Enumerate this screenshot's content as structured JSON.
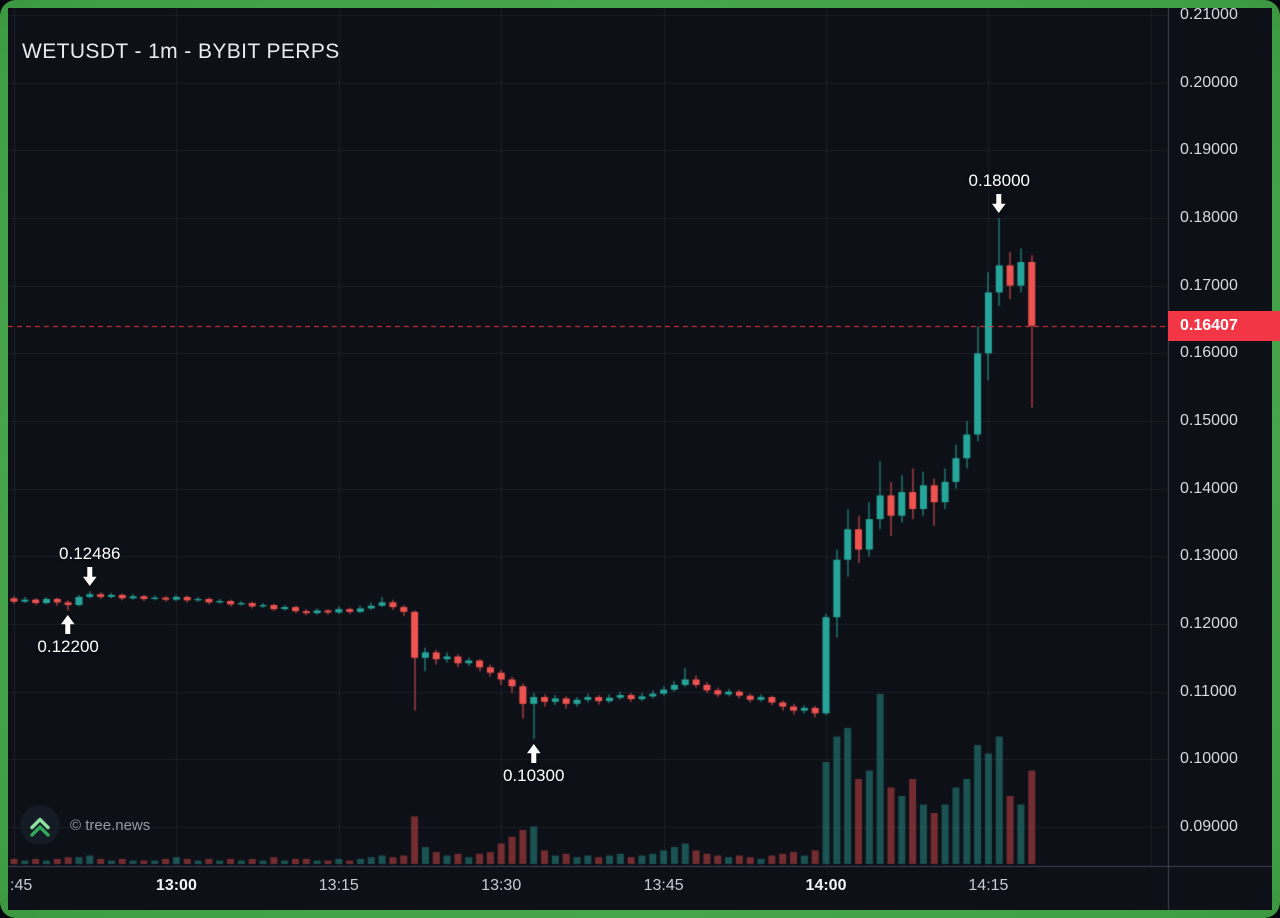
{
  "header": {
    "title": "WETUSDT - 1m - BYBIT PERPS"
  },
  "watermark": {
    "text": "© tree.news",
    "logo_icon": "double-chevron-up"
  },
  "chart_data": {
    "type": "candlestick",
    "symbol": "WETUSDT",
    "interval": "1m",
    "market": "BYBIT PERPS",
    "series_start_time": "12:45",
    "interval_minutes": 1,
    "visible_price_range": [
      0.0843,
      0.211
    ],
    "grid": true,
    "legend_position": "none",
    "price_axis": {
      "ticks": [
        "0.21000",
        "0.20000",
        "0.19000",
        "0.18000",
        "0.17000",
        "0.16000",
        "0.15000",
        "0.14000",
        "0.13000",
        "0.12000",
        "0.11000",
        "0.10000",
        "0.09000"
      ]
    },
    "time_axis": {
      "ticks": [
        {
          "label": ":45",
          "minute": 0,
          "major": false,
          "edge": true
        },
        {
          "label": "13:00",
          "minute": 15,
          "major": true
        },
        {
          "label": "13:15",
          "minute": 30,
          "major": false
        },
        {
          "label": "13:30",
          "minute": 45,
          "major": false
        },
        {
          "label": "13:45",
          "minute": 60,
          "major": false
        },
        {
          "label": "14:00",
          "minute": 75,
          "major": true
        },
        {
          "label": "14:15",
          "minute": 90,
          "major": false
        }
      ],
      "extra_gridline_minutes": [
        105
      ]
    },
    "last_price": {
      "value": 0.16407,
      "label": "0.16407"
    },
    "annotations": [
      {
        "label": "0.12486",
        "price": 0.12486,
        "candle_index": 7,
        "arrow": "down"
      },
      {
        "label": "0.12200",
        "price": 0.122,
        "candle_index": 5,
        "arrow": "up"
      },
      {
        "label": "0.10300",
        "price": 0.103,
        "candle_index": 48,
        "arrow": "up"
      },
      {
        "label": "0.18000",
        "price": 0.18,
        "candle_index": 91,
        "arrow": "down"
      }
    ],
    "colors": {
      "up": "#26a69a",
      "down": "#ef5350",
      "volume_up": "rgba(42,167,155,0.45)",
      "volume_down": "rgba(239,83,80,0.45)",
      "last_price_line": "#f23645",
      "background": "#0d1017",
      "grid": "rgba(255,255,255,0.06)",
      "axis_separator": "#3f4655",
      "frame_green": "#3f9e44"
    },
    "volume_unit": "relative",
    "candle_format": [
      "open",
      "high",
      "low",
      "close",
      "volume"
    ],
    "candles": [
      [
        0.1238,
        0.1241,
        0.123,
        0.1233,
        3
      ],
      [
        0.1233,
        0.124,
        0.1231,
        0.1236,
        2
      ],
      [
        0.1236,
        0.1238,
        0.1228,
        0.1231,
        3
      ],
      [
        0.1231,
        0.124,
        0.1229,
        0.1237,
        2
      ],
      [
        0.1237,
        0.1239,
        0.1227,
        0.1232,
        3
      ],
      [
        0.1232,
        0.1235,
        0.122,
        0.1228,
        4
      ],
      [
        0.1228,
        0.1243,
        0.1226,
        0.124,
        4
      ],
      [
        0.124,
        0.12486,
        0.1238,
        0.1244,
        5
      ],
      [
        0.1244,
        0.1247,
        0.1237,
        0.124,
        3
      ],
      [
        0.124,
        0.1246,
        0.1238,
        0.1243,
        2
      ],
      [
        0.1243,
        0.1245,
        0.1235,
        0.1238,
        3
      ],
      [
        0.1238,
        0.1244,
        0.1236,
        0.1241,
        2
      ],
      [
        0.1241,
        0.1243,
        0.1234,
        0.1237,
        2
      ],
      [
        0.1237,
        0.1242,
        0.1235,
        0.1239,
        2
      ],
      [
        0.1239,
        0.1241,
        0.1233,
        0.1236,
        3
      ],
      [
        0.1236,
        0.1243,
        0.1234,
        0.124,
        4
      ],
      [
        0.124,
        0.1242,
        0.1232,
        0.1235,
        3
      ],
      [
        0.1235,
        0.124,
        0.1233,
        0.1237,
        2
      ],
      [
        0.1237,
        0.1239,
        0.1229,
        0.1232,
        3
      ],
      [
        0.1232,
        0.1237,
        0.123,
        0.1234,
        2
      ],
      [
        0.1234,
        0.1236,
        0.1226,
        0.1229,
        3
      ],
      [
        0.1229,
        0.1234,
        0.1227,
        0.1231,
        2
      ],
      [
        0.1231,
        0.1233,
        0.1223,
        0.1226,
        3
      ],
      [
        0.1226,
        0.1231,
        0.1224,
        0.1228,
        2
      ],
      [
        0.1228,
        0.123,
        0.1219,
        0.1222,
        4
      ],
      [
        0.1222,
        0.1228,
        0.122,
        0.1225,
        2
      ],
      [
        0.1225,
        0.1227,
        0.1216,
        0.1219,
        3
      ],
      [
        0.1219,
        0.1222,
        0.1213,
        0.1216,
        3
      ],
      [
        0.1216,
        0.1223,
        0.1214,
        0.122,
        2
      ],
      [
        0.122,
        0.1222,
        0.1214,
        0.1217,
        2
      ],
      [
        0.1217,
        0.1226,
        0.1215,
        0.1222,
        3
      ],
      [
        0.1222,
        0.1224,
        0.1215,
        0.1218,
        2
      ],
      [
        0.1218,
        0.1227,
        0.1216,
        0.1223,
        3
      ],
      [
        0.1223,
        0.1232,
        0.1221,
        0.1227,
        4
      ],
      [
        0.1227,
        0.124,
        0.1225,
        0.1232,
        5
      ],
      [
        0.1232,
        0.1236,
        0.1221,
        0.1225,
        4
      ],
      [
        0.1225,
        0.1228,
        0.1212,
        0.1218,
        5
      ],
      [
        0.1218,
        0.122,
        0.1072,
        0.115,
        28
      ],
      [
        0.115,
        0.1165,
        0.113,
        0.1158,
        10
      ],
      [
        0.1158,
        0.1162,
        0.114,
        0.1148,
        7
      ],
      [
        0.1148,
        0.1158,
        0.1143,
        0.1152,
        5
      ],
      [
        0.1152,
        0.1155,
        0.1136,
        0.1142,
        6
      ],
      [
        0.1142,
        0.115,
        0.1138,
        0.1146,
        4
      ],
      [
        0.1146,
        0.1148,
        0.113,
        0.1136,
        6
      ],
      [
        0.1136,
        0.114,
        0.1122,
        0.1128,
        7
      ],
      [
        0.1128,
        0.1132,
        0.111,
        0.1118,
        12
      ],
      [
        0.1118,
        0.1122,
        0.1098,
        0.1108,
        16
      ],
      [
        0.1108,
        0.1112,
        0.106,
        0.1082,
        20
      ],
      [
        0.1082,
        0.1098,
        0.103,
        0.1092,
        22
      ],
      [
        0.1092,
        0.1096,
        0.1078,
        0.1085,
        8
      ],
      [
        0.1085,
        0.1095,
        0.108,
        0.109,
        5
      ],
      [
        0.109,
        0.1093,
        0.1075,
        0.1082,
        6
      ],
      [
        0.1082,
        0.1092,
        0.1078,
        0.1088,
        4
      ],
      [
        0.1088,
        0.1097,
        0.1084,
        0.1092,
        5
      ],
      [
        0.1092,
        0.1095,
        0.1081,
        0.1086,
        4
      ],
      [
        0.1086,
        0.1096,
        0.1083,
        0.1091,
        5
      ],
      [
        0.1091,
        0.11,
        0.1088,
        0.1095,
        6
      ],
      [
        0.1095,
        0.1098,
        0.1085,
        0.1089,
        4
      ],
      [
        0.1089,
        0.1098,
        0.1086,
        0.1093,
        5
      ],
      [
        0.1093,
        0.1102,
        0.109,
        0.1097,
        6
      ],
      [
        0.1097,
        0.1108,
        0.1094,
        0.1103,
        8
      ],
      [
        0.1103,
        0.1116,
        0.11,
        0.111,
        10
      ],
      [
        0.111,
        0.1135,
        0.1107,
        0.1118,
        12
      ],
      [
        0.1118,
        0.1124,
        0.1106,
        0.111,
        8
      ],
      [
        0.111,
        0.1114,
        0.1098,
        0.1102,
        6
      ],
      [
        0.1102,
        0.1106,
        0.1092,
        0.1096,
        5
      ],
      [
        0.1096,
        0.1104,
        0.1093,
        0.11,
        4
      ],
      [
        0.11,
        0.1103,
        0.109,
        0.1094,
        5
      ],
      [
        0.1094,
        0.1097,
        0.1084,
        0.1088,
        4
      ],
      [
        0.1088,
        0.1096,
        0.1085,
        0.1092,
        3
      ],
      [
        0.1092,
        0.1094,
        0.108,
        0.1084,
        5
      ],
      [
        0.1084,
        0.1087,
        0.1072,
        0.1078,
        6
      ],
      [
        0.1078,
        0.1082,
        0.1066,
        0.1072,
        7
      ],
      [
        0.1072,
        0.108,
        0.1068,
        0.1076,
        5
      ],
      [
        0.1076,
        0.1079,
        0.1062,
        0.1068,
        8
      ],
      [
        0.1068,
        0.1215,
        0.1065,
        0.121,
        60
      ],
      [
        0.121,
        0.131,
        0.118,
        0.1295,
        75
      ],
      [
        0.1295,
        0.137,
        0.127,
        0.134,
        80
      ],
      [
        0.134,
        0.136,
        0.129,
        0.131,
        50
      ],
      [
        0.131,
        0.138,
        0.13,
        0.1355,
        55
      ],
      [
        0.1355,
        0.144,
        0.134,
        0.139,
        100
      ],
      [
        0.139,
        0.141,
        0.133,
        0.136,
        45
      ],
      [
        0.136,
        0.142,
        0.135,
        0.1395,
        40
      ],
      [
        0.1395,
        0.143,
        0.1355,
        0.137,
        50
      ],
      [
        0.137,
        0.1425,
        0.136,
        0.1405,
        35
      ],
      [
        0.1405,
        0.1415,
        0.1345,
        0.138,
        30
      ],
      [
        0.138,
        0.143,
        0.137,
        0.141,
        35
      ],
      [
        0.141,
        0.1465,
        0.14,
        0.1445,
        45
      ],
      [
        0.1445,
        0.15,
        0.143,
        0.148,
        50
      ],
      [
        0.148,
        0.164,
        0.147,
        0.16,
        70
      ],
      [
        0.16,
        0.172,
        0.156,
        0.169,
        65
      ],
      [
        0.169,
        0.18,
        0.167,
        0.173,
        75
      ],
      [
        0.173,
        0.175,
        0.168,
        0.17,
        40
      ],
      [
        0.17,
        0.1755,
        0.169,
        0.1735,
        35
      ],
      [
        0.1735,
        0.1745,
        0.152,
        0.16407,
        55
      ]
    ]
  }
}
